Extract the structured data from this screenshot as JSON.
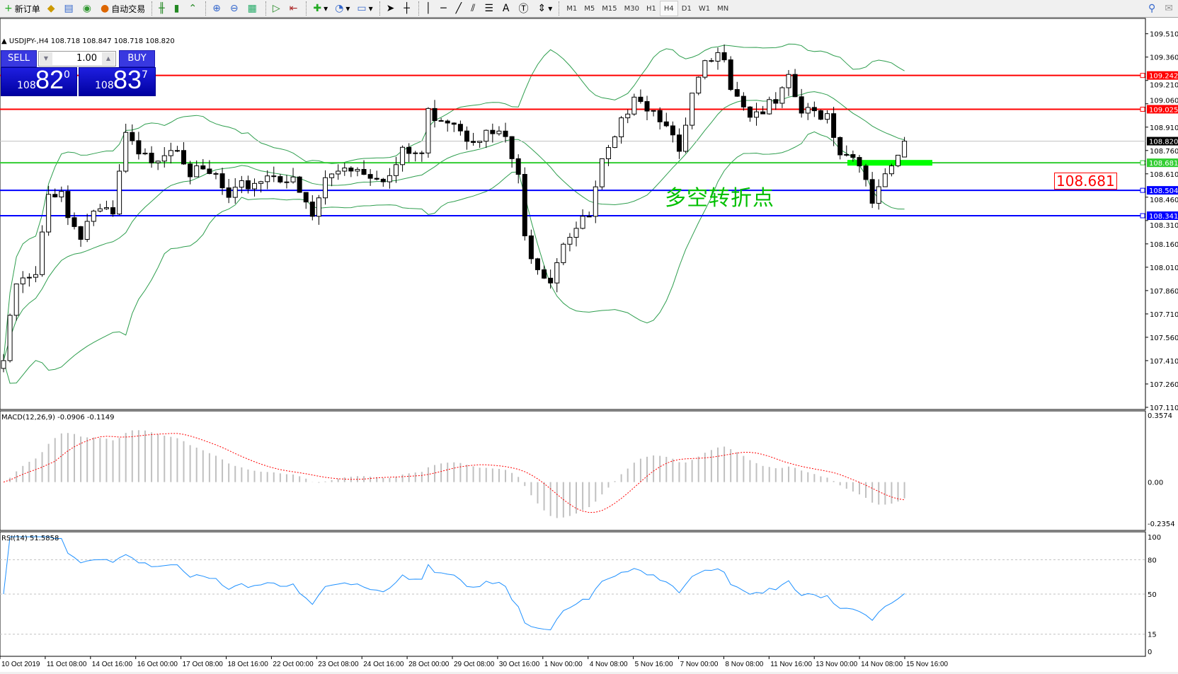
{
  "toolbar": {
    "new_order": "新订单",
    "auto_trading": "自动交易",
    "timeframes": [
      "M1",
      "M5",
      "M15",
      "M30",
      "H1",
      "H4",
      "D1",
      "W1",
      "MN"
    ],
    "active_timeframe": "H4"
  },
  "chart": {
    "header": "USDJPY-,H4  108.718 108.847 108.718 108.820",
    "trade_panel": {
      "sell_label": "SELL",
      "buy_label": "BUY",
      "lot": "1.00",
      "sell_prefix": "108",
      "sell_big": "82",
      "sell_sup": "0",
      "buy_prefix": "108",
      "buy_big": "83",
      "buy_sup": "7"
    },
    "annotation_cn": "多空转折点",
    "annotation_price": "108.681",
    "price_axis": [
      "109.510",
      "109.360",
      "109.210",
      "109.060",
      "108.910",
      "108.760",
      "108.610",
      "108.460",
      "108.310",
      "108.160",
      "108.010",
      "107.860",
      "107.710",
      "107.560",
      "107.410",
      "107.260",
      "107.110"
    ],
    "hlines": [
      {
        "price": "109.242",
        "color": "#ff0000"
      },
      {
        "price": "109.025",
        "color": "#ff0000"
      },
      {
        "price": "108.820",
        "color": "#000000",
        "current": true
      },
      {
        "price": "108.681",
        "color": "#32cd32"
      },
      {
        "price": "108.504",
        "color": "#0000ff"
      },
      {
        "price": "108.341",
        "color": "#0000ff"
      }
    ],
    "time_axis": [
      "10 Oct 2019",
      "11 Oct 08:00",
      "14 Oct 16:00",
      "16 Oct 00:00",
      "17 Oct 08:00",
      "18 Oct 16:00",
      "22 Oct 00:00",
      "23 Oct 08:00",
      "24 Oct 16:00",
      "28 Oct 00:00",
      "29 Oct 08:00",
      "30 Oct 16:00",
      "1 Nov 00:00",
      "4 Nov 08:00",
      "5 Nov 16:00",
      "7 Nov 00:00",
      "8 Nov 08:00",
      "11 Nov 16:00",
      "13 Nov 00:00",
      "14 Nov 08:00",
      "15 Nov 16:00"
    ],
    "macd": {
      "label": "MACD(12,26,9) -0.0906 -0.1149",
      "axis": [
        "0.3574",
        "0.00",
        "-0.2354"
      ]
    },
    "rsi": {
      "label": "RSI(14) 51.5858",
      "axis": [
        "100",
        "80",
        "50",
        "15",
        "0"
      ]
    },
    "colors": {
      "bands": "#2e9e4e",
      "macd_signal": "#ff0000",
      "macd_hist": "#c0c0c0",
      "rsi": "#1e90ff"
    }
  },
  "chart_data": {
    "type": "candlestick",
    "symbol": "USDJPY-",
    "timeframe": "H4",
    "ylim": [
      107.11,
      109.51
    ],
    "close_keypoints": [
      [
        0,
        107.41
      ],
      [
        2,
        107.9
      ],
      [
        5,
        107.94
      ],
      [
        7,
        108.47
      ],
      [
        9,
        108.52
      ],
      [
        10,
        108.33
      ],
      [
        12,
        108.23
      ],
      [
        14,
        108.38
      ],
      [
        17,
        108.33
      ],
      [
        19,
        108.86
      ],
      [
        21,
        108.71
      ],
      [
        23,
        108.71
      ],
      [
        27,
        108.81
      ],
      [
        29,
        108.62
      ],
      [
        33,
        108.59
      ],
      [
        35,
        108.43
      ],
      [
        37,
        108.52
      ],
      [
        42,
        108.62
      ],
      [
        45,
        108.55
      ],
      [
        48,
        108.33
      ],
      [
        50,
        108.57
      ],
      [
        53,
        108.67
      ],
      [
        57,
        108.62
      ],
      [
        60,
        108.59
      ],
      [
        62,
        108.74
      ],
      [
        65,
        108.74
      ],
      [
        66,
        109.0
      ],
      [
        70,
        108.96
      ],
      [
        72,
        108.86
      ],
      [
        76,
        108.86
      ],
      [
        78,
        108.84
      ],
      [
        80,
        108.57
      ],
      [
        81,
        108.19
      ],
      [
        83,
        108.03
      ],
      [
        85,
        107.94
      ],
      [
        87,
        108.19
      ],
      [
        88,
        108.23
      ],
      [
        91,
        108.33
      ],
      [
        93,
        108.67
      ],
      [
        95,
        108.81
      ],
      [
        98,
        109.15
      ],
      [
        100,
        109.05
      ],
      [
        103,
        108.96
      ],
      [
        105,
        108.71
      ],
      [
        107,
        109.1
      ],
      [
        109,
        109.29
      ],
      [
        112,
        109.39
      ],
      [
        113,
        109.2
      ],
      [
        116,
        109.0
      ],
      [
        120,
        109.05
      ],
      [
        122,
        109.2
      ],
      [
        124,
        109.0
      ],
      [
        128,
        109.0
      ],
      [
        130,
        108.76
      ],
      [
        133,
        108.71
      ],
      [
        135,
        108.38
      ],
      [
        136,
        108.52
      ],
      [
        138,
        108.62
      ],
      [
        140,
        108.82
      ]
    ],
    "last": {
      "open": 108.718,
      "high": 108.847,
      "low": 108.718,
      "close": 108.82
    }
  }
}
